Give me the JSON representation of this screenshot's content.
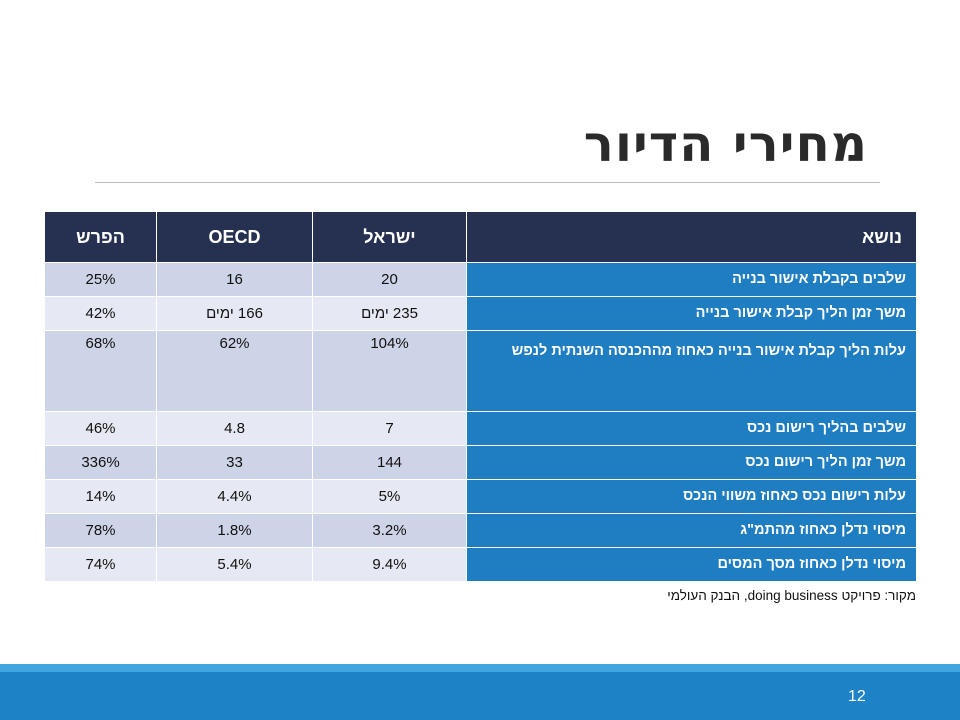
{
  "slide": {
    "title": "מחירי הדיור",
    "page_number": "12",
    "source_note": "מקור: פרויקט doing business, הבנק העולמי"
  },
  "table": {
    "headers": {
      "topic": "נושא",
      "israel": "ישראל",
      "oecd": "OECD",
      "diff": "הפרש"
    },
    "rows": [
      {
        "topic": "שלבים בקבלת אישור בנייה",
        "israel": "20",
        "oecd": "16",
        "diff": "25%"
      },
      {
        "topic": "משך זמן הליך קבלת אישור בנייה",
        "israel": "235 ימים",
        "oecd": "166 ימים",
        "diff": "42%"
      },
      {
        "topic": "עלות הליך קבלת אישור בנייה כאחוז מההכנסה השנתית לנפש",
        "israel": "104%",
        "oecd": "62%",
        "diff": "68%"
      },
      {
        "topic": "שלבים בהליך רישום נכס",
        "israel": "7",
        "oecd": "4.8",
        "diff": "46%"
      },
      {
        "topic": "משך זמן הליך רישום נכס",
        "israel": "144",
        "oecd": "33",
        "diff": "336%"
      },
      {
        "topic": "עלות רישום נכס כאחוז משווי הנכס",
        "israel": "5%",
        "oecd": "4.4%",
        "diff": "14%"
      },
      {
        "topic": "מיסוי נדלן כאחוז מהתמ\"ג",
        "israel": "3.2%",
        "oecd": "1.8%",
        "diff": "78%"
      },
      {
        "topic": "מיסוי נדלן כאחוז מסך המסים",
        "israel": "9.4%",
        "oecd": "5.4%",
        "diff": "74%"
      }
    ]
  },
  "colors": {
    "header_bg": "#263050",
    "topic_bg": "#1f7dc1",
    "row_odd_bg": "#cdd4e7",
    "row_even_bg": "#e6e9f3",
    "footer_bg": "#1e82c6",
    "footer_line": "#3fa6e0"
  }
}
